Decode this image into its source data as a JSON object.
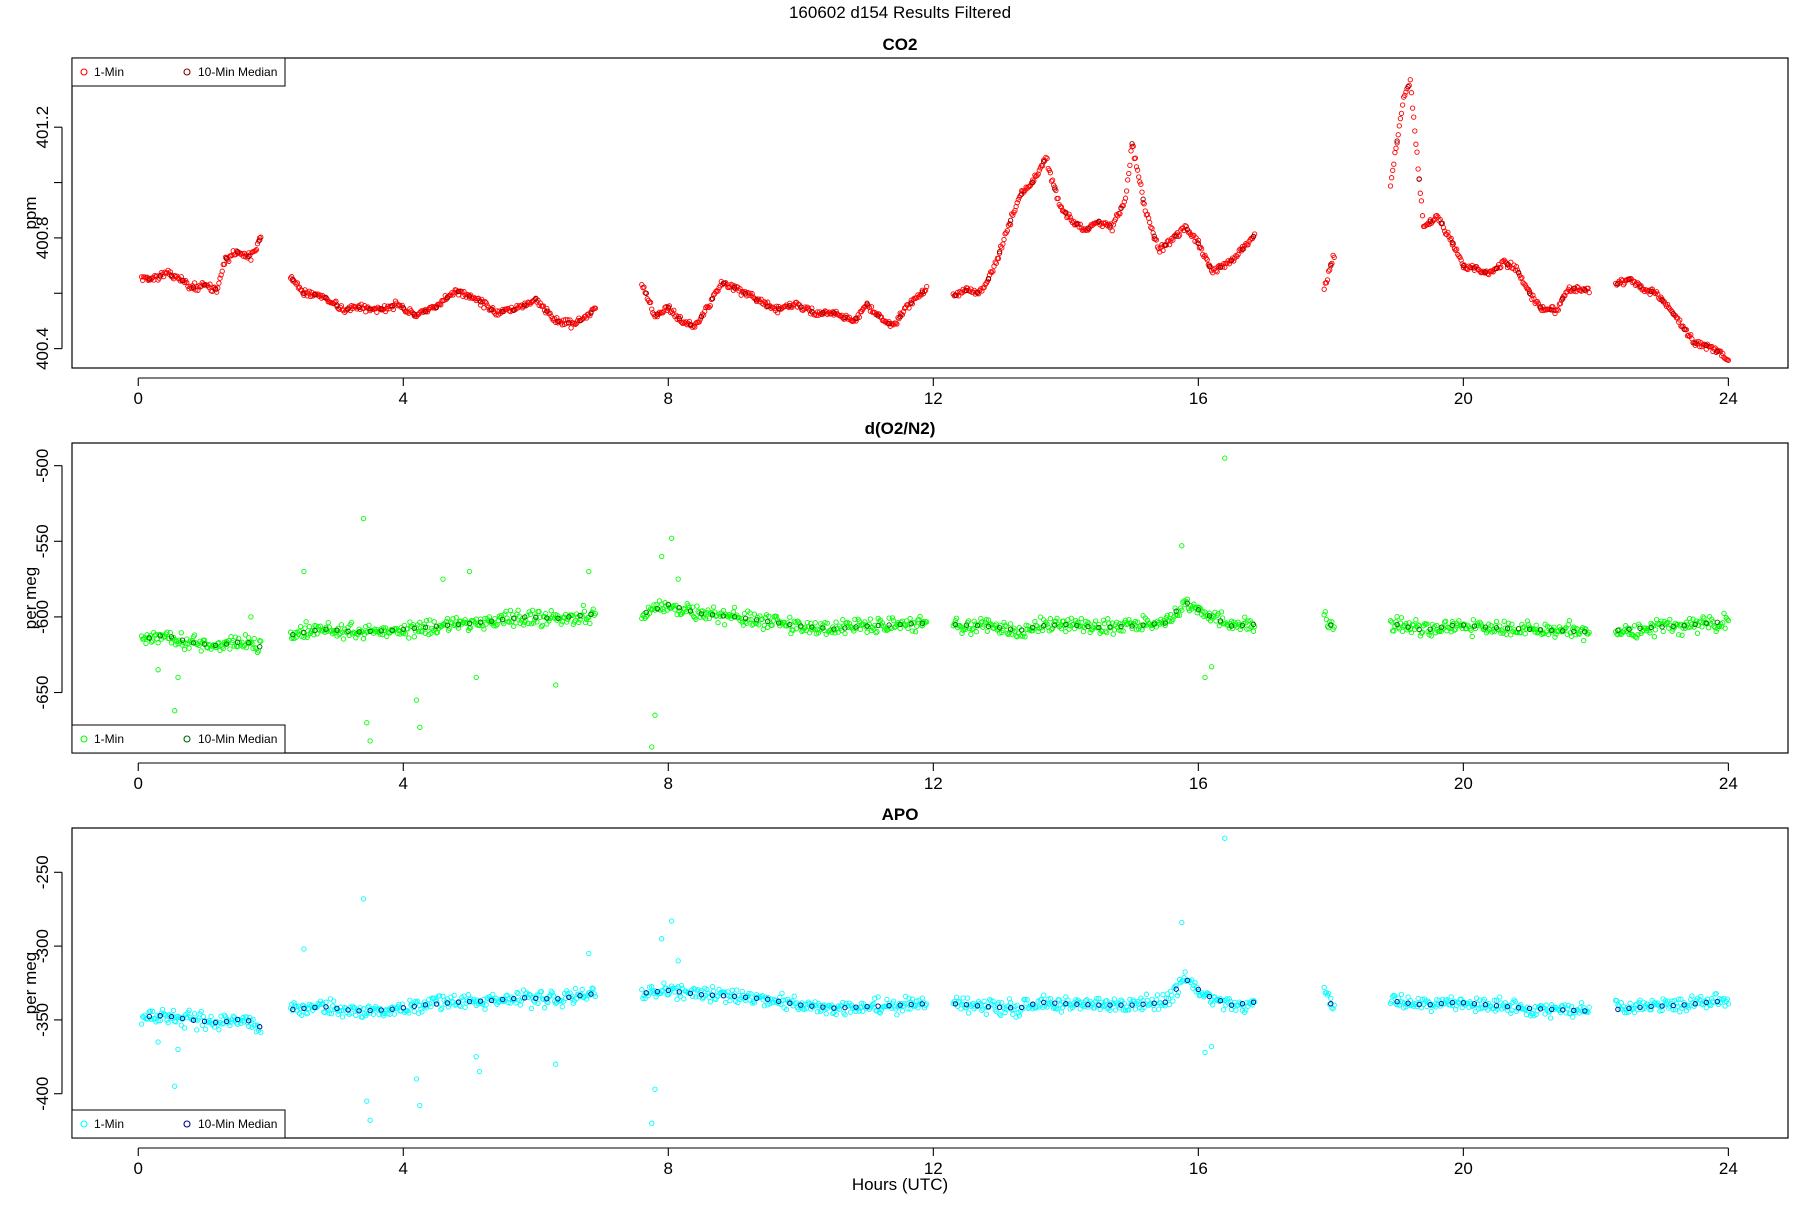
{
  "figure": {
    "title": "160602   d154   Results Filtered",
    "xlabel": "Hours (UTC)"
  },
  "chart_data": [
    {
      "type": "scatter",
      "title": "CO2",
      "xlabel": "",
      "ylabel": "ppm",
      "xlim": [
        -1.0,
        24.9
      ],
      "ylim": [
        400.33,
        401.45
      ],
      "x_ticks": [
        0,
        4,
        8,
        12,
        16,
        20,
        24
      ],
      "y_ticks": [
        400.4,
        400.6,
        400.8,
        401.0,
        401.2
      ],
      "y_tick_labels": [
        "400.4",
        "",
        "400.8",
        "",
        "401.2"
      ],
      "legend": {
        "position": "top-left",
        "entries": [
          "1-Min",
          "10-Min Median"
        ]
      },
      "colors": {
        "one_min": "#ff0000",
        "median": "#8b0000"
      },
      "series": [
        {
          "name": "1-Min",
          "segments": [
            {
              "x": [
                0.05,
                0.2,
                0.4,
                0.6,
                0.8,
                1.0,
                1.2,
                1.3,
                1.5,
                1.7,
                1.85
              ],
              "y": [
                400.66,
                400.65,
                400.67,
                400.66,
                400.62,
                400.63,
                400.61,
                400.72,
                400.75,
                400.73,
                400.8
              ]
            },
            {
              "x": [
                2.3,
                2.5,
                2.8,
                3.1,
                3.3,
                3.6,
                3.9,
                4.2,
                4.5,
                4.8,
                5.1,
                5.4,
                5.7,
                6.0,
                6.3,
                6.6,
                6.9
              ],
              "y": [
                400.66,
                400.6,
                400.59,
                400.54,
                400.55,
                400.54,
                400.56,
                400.52,
                400.55,
                400.61,
                400.58,
                400.53,
                400.54,
                400.58,
                400.5,
                400.49,
                400.54
              ]
            },
            {
              "x": [
                7.6,
                7.8,
                8.0,
                8.2,
                8.4,
                8.6,
                8.8,
                9.0,
                9.3,
                9.6,
                9.9,
                10.2,
                10.5,
                10.8,
                11.0,
                11.2,
                11.4,
                11.6,
                11.9
              ],
              "y": [
                400.64,
                400.52,
                400.55,
                400.5,
                400.48,
                400.55,
                400.64,
                400.62,
                400.58,
                400.54,
                400.56,
                400.53,
                400.53,
                400.5,
                400.56,
                400.51,
                400.48,
                400.55,
                400.62
              ]
            },
            {
              "x": [
                12.3,
                12.5,
                12.7,
                12.9,
                13.1,
                13.3,
                13.5,
                13.7,
                13.9,
                14.1,
                14.3,
                14.5,
                14.7,
                14.9,
                15.0,
                15.2,
                15.4,
                15.6,
                15.8,
                16.0,
                16.2,
                16.4,
                16.6,
                16.85
              ],
              "y": [
                400.59,
                400.61,
                400.6,
                400.68,
                400.82,
                400.95,
                401.0,
                401.09,
                400.92,
                400.86,
                400.83,
                400.86,
                400.84,
                400.94,
                401.14,
                400.9,
                400.76,
                400.79,
                400.84,
                400.78,
                400.68,
                400.7,
                400.74,
                400.81
              ]
            },
            {
              "x": [
                17.9,
                18.05
              ],
              "y": [
                400.62,
                400.74
              ]
            },
            {
              "x": [
                18.9,
                19.0,
                19.1,
                19.2,
                19.3,
                19.4,
                19.6,
                19.8,
                20.0,
                20.2,
                20.4,
                20.6,
                20.8,
                21.0,
                21.2,
                21.4,
                21.6,
                21.9
              ],
              "y": [
                401.0,
                401.15,
                401.3,
                401.37,
                401.1,
                400.84,
                400.88,
                400.8,
                400.7,
                400.69,
                400.67,
                400.71,
                400.69,
                400.6,
                400.54,
                400.54,
                400.62,
                400.61
              ]
            },
            {
              "x": [
                22.3,
                22.5,
                22.7,
                22.9,
                23.1,
                23.3,
                23.5,
                23.7,
                23.9,
                24.0
              ],
              "y": [
                400.63,
                400.65,
                400.62,
                400.6,
                400.55,
                400.48,
                400.42,
                400.41,
                400.38,
                400.35
              ]
            }
          ]
        },
        {
          "name": "10-Min Median"
        }
      ]
    },
    {
      "type": "scatter",
      "title": "d(O2/N2)",
      "xlabel": "",
      "ylabel": "per meg",
      "xlim": [
        -1.0,
        24.9
      ],
      "ylim": [
        -690,
        -485
      ],
      "x_ticks": [
        0,
        4,
        8,
        12,
        16,
        20,
        24
      ],
      "y_ticks": [
        -500,
        -550,
        -600,
        -650
      ],
      "legend": {
        "position": "bottom-left",
        "entries": [
          "1-Min",
          "10-Min Median"
        ]
      },
      "colors": {
        "one_min": "#00ff00",
        "median": "#006400"
      },
      "series": [
        {
          "name": "1-Min",
          "segments": [
            {
              "x": [
                0.05,
                0.4,
                0.8,
                1.2,
                1.6,
                1.85
              ],
              "y": [
                -615,
                -612,
                -617,
                -619,
                -616,
                -620
              ]
            },
            {
              "x": [
                2.3,
                2.8,
                3.3,
                3.8,
                4.3,
                4.8,
                5.3,
                5.8,
                6.3,
                6.9
              ],
              "y": [
                -612,
                -608,
                -610,
                -609,
                -607,
                -605,
                -603,
                -600,
                -601,
                -598
              ]
            },
            {
              "x": [
                7.6,
                8.0,
                8.5,
                9.0,
                9.5,
                10.0,
                10.5,
                11.0,
                11.5,
                11.9
              ],
              "y": [
                -598,
                -592,
                -598,
                -600,
                -603,
                -606,
                -608,
                -606,
                -605,
                -604
              ]
            },
            {
              "x": [
                12.3,
                12.8,
                13.3,
                13.6,
                14.0,
                14.5,
                15.0,
                15.5,
                15.8,
                16.1,
                16.5,
                16.85
              ],
              "y": [
                -605,
                -606,
                -609,
                -606,
                -605,
                -607,
                -606,
                -604,
                -590,
                -598,
                -606,
                -605
              ]
            },
            {
              "x": [
                17.9,
                18.05
              ],
              "y": [
                -600,
                -608
              ]
            },
            {
              "x": [
                18.9,
                19.4,
                19.9,
                20.4,
                20.9,
                21.4,
                21.9
              ],
              "y": [
                -604,
                -609,
                -605,
                -607,
                -608,
                -609,
                -610
              ]
            },
            {
              "x": [
                22.3,
                22.8,
                23.3,
                23.7,
                24.0
              ],
              "y": [
                -609,
                -607,
                -606,
                -604,
                -603
              ]
            }
          ],
          "outliers": {
            "x": [
              0.3,
              0.55,
              0.6,
              1.7,
              2.5,
              3.4,
              3.45,
              3.5,
              4.2,
              4.25,
              4.6,
              5.0,
              5.1,
              5.3,
              6.3,
              6.8,
              7.75,
              7.8,
              7.9,
              8.05,
              8.15,
              15.75,
              16.1,
              16.2,
              16.4
            ],
            "y": [
              -635,
              -662,
              -640,
              -600,
              -570,
              -535,
              -670,
              -682,
              -655,
              -673,
              -575,
              -570,
              -640,
              -600,
              -645,
              -570,
              -686,
              -665,
              -560,
              -548,
              -575,
              -553,
              -640,
              -633,
              -495
            ]
          }
        },
        {
          "name": "10-Min Median"
        }
      ]
    },
    {
      "type": "scatter",
      "title": "APO",
      "xlabel": "Hours (UTC)",
      "ylabel": "per meg",
      "xlim": [
        -1.0,
        24.9
      ],
      "ylim": [
        -430,
        -220
      ],
      "x_ticks": [
        0,
        4,
        8,
        12,
        16,
        20,
        24
      ],
      "y_ticks": [
        -250,
        -300,
        -350,
        -400
      ],
      "legend": {
        "position": "bottom-left",
        "entries": [
          "1-Min",
          "10-Min Median"
        ]
      },
      "colors": {
        "one_min": "#00ffff",
        "median": "#00008b"
      },
      "series": [
        {
          "name": "1-Min",
          "segments": [
            {
              "x": [
                0.05,
                0.4,
                0.8,
                1.2,
                1.6,
                1.85
              ],
              "y": [
                -348,
                -347,
                -350,
                -352,
                -349,
                -355
              ]
            },
            {
              "x": [
                2.3,
                2.8,
                3.3,
                3.8,
                4.3,
                4.8,
                5.3,
                5.8,
                6.3,
                6.9
              ],
              "y": [
                -343,
                -341,
                -344,
                -343,
                -340,
                -338,
                -337,
                -335,
                -336,
                -332
              ]
            },
            {
              "x": [
                7.6,
                8.0,
                8.5,
                9.0,
                9.5,
                10.0,
                10.5,
                11.0,
                11.5,
                11.9
              ],
              "y": [
                -332,
                -330,
                -333,
                -334,
                -336,
                -340,
                -342,
                -341,
                -340,
                -339
              ]
            },
            {
              "x": [
                12.3,
                12.8,
                13.3,
                13.6,
                14.0,
                14.5,
                15.0,
                15.5,
                15.8,
                16.1,
                16.5,
                16.85
              ],
              "y": [
                -339,
                -341,
                -342,
                -338,
                -339,
                -340,
                -340,
                -338,
                -322,
                -333,
                -340,
                -338
              ]
            },
            {
              "x": [
                17.9,
                18.05
              ],
              "y": [
                -333,
                -342
              ]
            },
            {
              "x": [
                18.9,
                19.4,
                19.9,
                20.4,
                20.9,
                21.4,
                21.9
              ],
              "y": [
                -337,
                -340,
                -338,
                -340,
                -342,
                -343,
                -344
              ]
            },
            {
              "x": [
                22.3,
                22.8,
                23.3,
                23.7,
                24.0
              ],
              "y": [
                -343,
                -341,
                -340,
                -338,
                -337
              ]
            }
          ],
          "outliers": {
            "x": [
              0.3,
              0.55,
              0.6,
              2.5,
              3.4,
              3.45,
              3.5,
              4.2,
              4.25,
              5.1,
              5.15,
              6.3,
              6.8,
              7.75,
              7.8,
              7.9,
              8.05,
              8.15,
              15.75,
              16.1,
              16.2,
              16.4
            ],
            "y": [
              -365,
              -395,
              -370,
              -302,
              -268,
              -405,
              -418,
              -390,
              -408,
              -375,
              -385,
              -380,
              -305,
              -420,
              -397,
              -295,
              -283,
              -310,
              -284,
              -372,
              -368,
              -227
            ]
          }
        },
        {
          "name": "10-Min Median"
        }
      ]
    }
  ]
}
